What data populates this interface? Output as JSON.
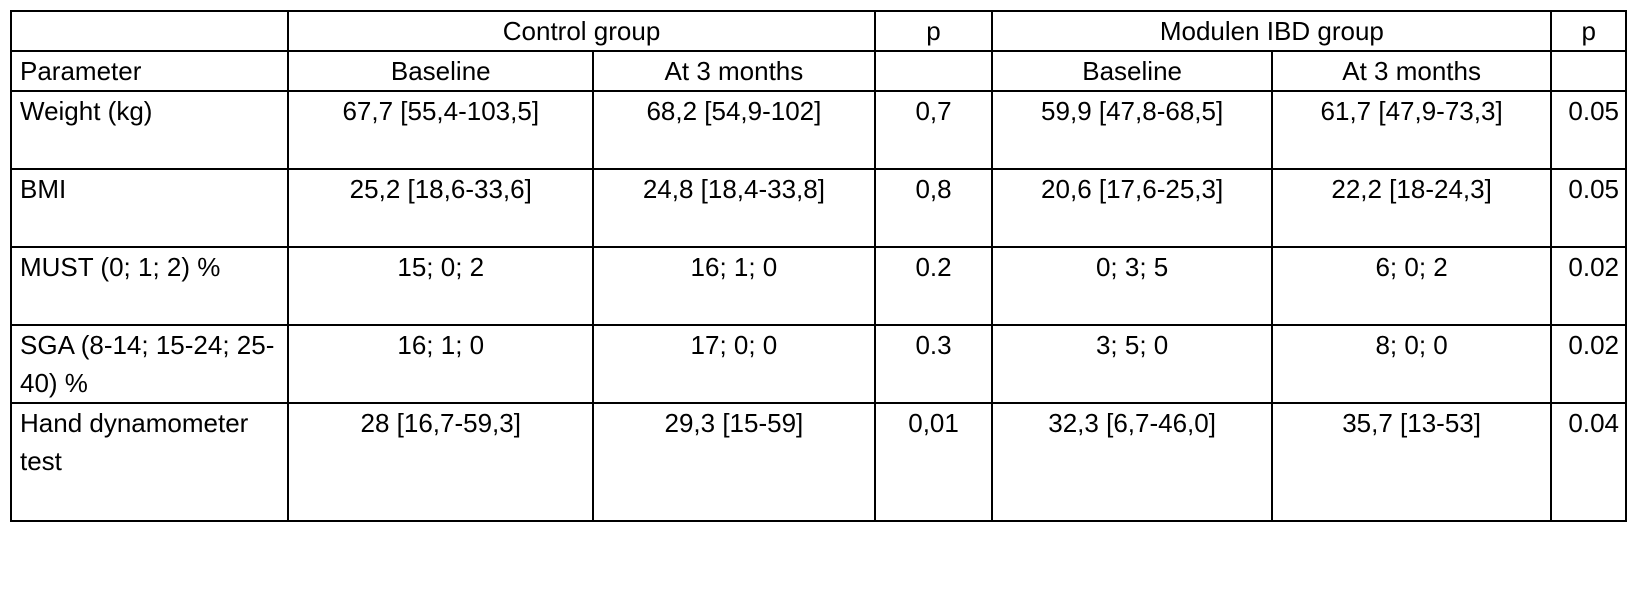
{
  "header": {
    "group1": "Control group",
    "p1": "p",
    "group2": "Modulen IBD group",
    "p2": "p"
  },
  "subheader": {
    "parameter": "Parameter",
    "baseline1": "Baseline",
    "months1": "At 3 months",
    "p1": "",
    "baseline2": "Baseline",
    "months2": "At 3 months",
    "p2": ""
  },
  "rows": [
    {
      "parameter": "Weight (kg)",
      "control_baseline": "67,7 [55,4-103,5]",
      "control_3m": "68,2 [54,9-102]",
      "control_p": "0,7",
      "modulen_baseline": "59,9 [47,8-68,5]",
      "modulen_3m": "61,7 [47,9-73,3]",
      "modulen_p": "0.05"
    },
    {
      "parameter": "BMI",
      "control_baseline": "25,2 [18,6-33,6]",
      "control_3m": "24,8 [18,4-33,8]",
      "control_p": "0,8",
      "modulen_baseline": "20,6 [17,6-25,3]",
      "modulen_3m": "22,2 [18-24,3]",
      "modulen_p": "0.05"
    },
    {
      "parameter": "MUST (0; 1; 2) %",
      "control_baseline": "15; 0; 2",
      "control_3m": "16; 1; 0",
      "control_p": "0.2",
      "modulen_baseline": "0; 3; 5",
      "modulen_3m": "6; 0; 2",
      "modulen_p": "0.02"
    },
    {
      "parameter": "SGA (8-14; 15-24; 25-40) %",
      "control_baseline": "16; 1; 0",
      "control_3m": "17; 0; 0",
      "control_p": "0.3",
      "modulen_baseline": "3; 5; 0",
      "modulen_3m": "8; 0; 0",
      "modulen_p": "0.02"
    },
    {
      "parameter": "Hand dynamometer test",
      "control_baseline": "28 [16,7-59,3]",
      "control_3m": "29,3 [15-59]",
      "control_p": "0,01",
      "modulen_baseline": "32,3 [6,7-46,0]",
      "modulen_3m": "35,7 [13-53]",
      "modulen_p": "0.04"
    }
  ]
}
